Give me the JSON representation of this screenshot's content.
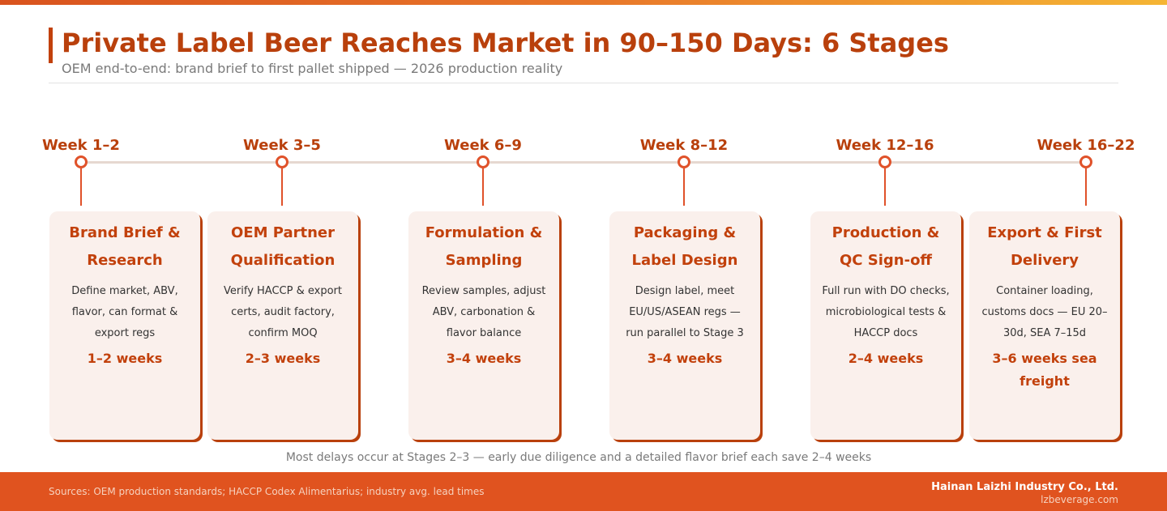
{
  "header": {
    "title": "Private Label Beer Reaches Market in 90–150 Days: 6 Stages",
    "subtitle": "OEM end-to-end: brand brief to first pallet shipped — 2026 production reality"
  },
  "stages": [
    {
      "week": "Week 1–2",
      "title": "Brand Brief & Research",
      "description": "Define market, ABV, flavor, can format & export regs",
      "duration": "1–2 weeks"
    },
    {
      "week": "Week 3–5",
      "title": "OEM Partner Qualification",
      "description": "Verify HACCP & export certs, audit factory, confirm MOQ",
      "duration": "2–3 weeks"
    },
    {
      "week": "Week 6–9",
      "title": "Formulation & Sampling",
      "description": "Review samples, adjust ABV, carbonation & flavor balance",
      "duration": "3–4 weeks"
    },
    {
      "week": "Week 8–12",
      "title": "Packaging & Label Design",
      "description": "Design label, meet EU/US/ASEAN regs — run parallel to Stage 3",
      "duration": "3–4 weeks"
    },
    {
      "week": "Week 12–16",
      "title": "Production & QC Sign-off",
      "description": "Full run with DO checks, microbiological tests & HACCP docs",
      "duration": "2–4 weeks"
    },
    {
      "week": "Week 16–22",
      "title": "Export & First Delivery",
      "description": "Container loading, customs docs — EU 20–30d, SEA 7–15d",
      "duration": "3–6 weeks sea freight"
    }
  ],
  "footnote": "Most delays occur at Stages 2–3 — early due diligence and a detailed flavor brief each save 2–4 weeks",
  "footer": {
    "sources": "Sources: OEM production standards; HACCP Codex Alimentarius; industry avg. lead times",
    "company": "Hainan Laizhi Industry Co., Ltd.",
    "website": "lzbeverage.com"
  },
  "colors": {
    "accent": "#c2410c",
    "footer": "#e0531f",
    "card": "#faf0ec",
    "timeline": "#e6d8d0"
  }
}
